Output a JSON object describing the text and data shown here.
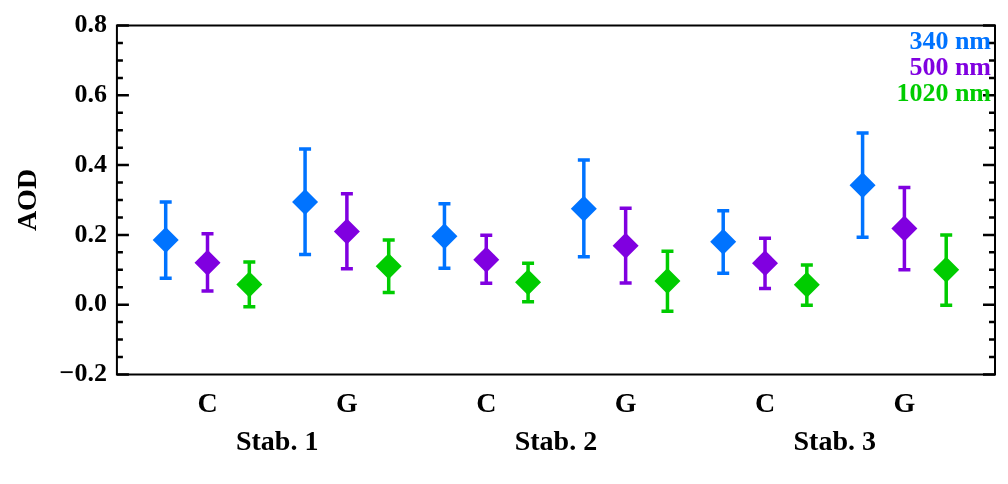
{
  "chart_data": {
    "type": "scatter",
    "ylabel": "AOD",
    "categories": [
      "C",
      "G",
      "C",
      "G",
      "C",
      "G"
    ],
    "annotations": [
      "Stab. 1",
      "Stab. 2",
      "Stab. 3"
    ],
    "series": [
      {
        "name": "340 nm",
        "color": "#0073ff",
        "values": [
          0.185,
          0.294,
          0.196,
          0.275,
          0.18,
          0.342
        ],
        "errors": [
          [
            0.076,
            0.294
          ],
          [
            0.144,
            0.446
          ],
          [
            0.104,
            0.289
          ],
          [
            0.137,
            0.415
          ],
          [
            0.09,
            0.269
          ],
          [
            0.193,
            0.492
          ]
        ]
      },
      {
        "name": "500 nm",
        "color": "#8000e0",
        "values": [
          0.12,
          0.21,
          0.129,
          0.169,
          0.119,
          0.218
        ],
        "errors": [
          [
            0.039,
            0.203
          ],
          [
            0.103,
            0.318
          ],
          [
            0.061,
            0.199
          ],
          [
            0.062,
            0.276
          ],
          [
            0.046,
            0.19
          ],
          [
            0.1,
            0.336
          ]
        ]
      },
      {
        "name": "1020 nm",
        "color": "#00cc00",
        "values": [
          0.058,
          0.11,
          0.064,
          0.068,
          0.057,
          0.1
        ],
        "errors": [
          [
            -0.006,
            0.122
          ],
          [
            0.035,
            0.185
          ],
          [
            0.008,
            0.119
          ],
          [
            -0.019,
            0.153
          ],
          [
            -0.002,
            0.114
          ],
          [
            -0.002,
            0.2
          ]
        ]
      }
    ],
    "ylim": [
      -0.2,
      0.8
    ],
    "yticks": [
      {
        "value": -0.2,
        "label": "−0.2"
      },
      {
        "value": -0.15,
        "label": null
      },
      {
        "value": -0.1,
        "label": null
      },
      {
        "value": -0.05,
        "label": null
      },
      {
        "value": 0,
        "label": "0.0"
      },
      {
        "value": 0.05,
        "label": null
      },
      {
        "value": 0.1,
        "label": null
      },
      {
        "value": 0.15,
        "label": null
      },
      {
        "value": 0.2,
        "label": "0.2"
      },
      {
        "value": 0.25,
        "label": null
      },
      {
        "value": 0.3,
        "label": null
      },
      {
        "value": 0.35,
        "label": null
      },
      {
        "value": 0.4,
        "label": "0.4"
      },
      {
        "value": 0.45,
        "label": null
      },
      {
        "value": 0.5,
        "label": null
      },
      {
        "value": 0.55,
        "label": null
      },
      {
        "value": 0.6,
        "label": "0.6"
      },
      {
        "value": 0.65,
        "label": null
      },
      {
        "value": 0.7,
        "label": null
      },
      {
        "value": 0.75,
        "label": null
      },
      {
        "value": 0.8,
        "label": "0.8"
      }
    ],
    "marker": "diamond",
    "legend": "top right",
    "grid": false
  }
}
